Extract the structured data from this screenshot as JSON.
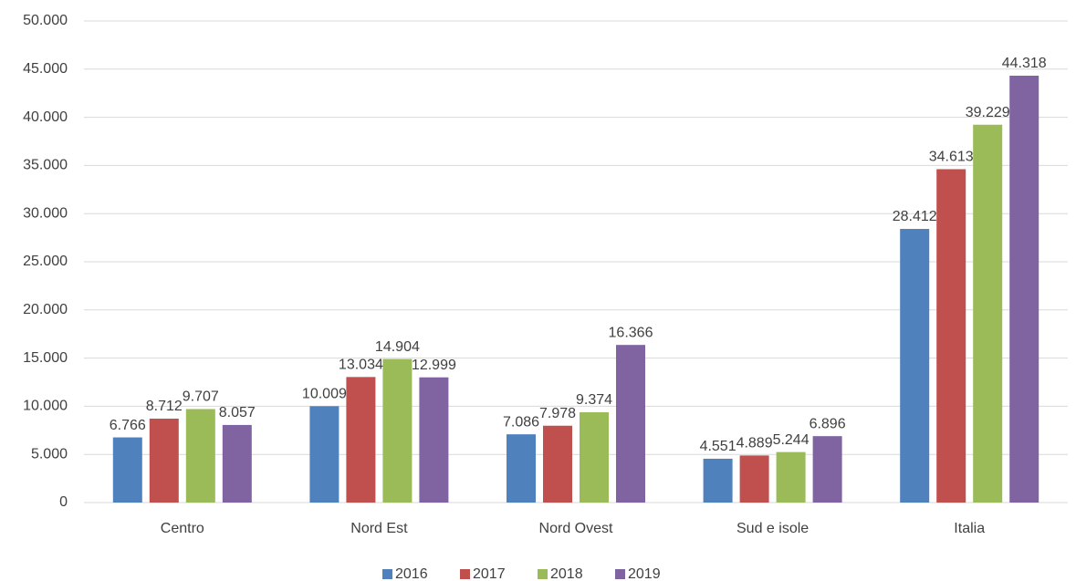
{
  "chart_data": {
    "type": "bar",
    "categories": [
      "Centro",
      "Nord Est",
      "Nord Ovest",
      "Sud e isole",
      "Italia"
    ],
    "series": [
      {
        "name": "2016",
        "color": "#4f81bd",
        "values": [
          6766,
          10009,
          7086,
          4551,
          28412
        ],
        "value_labels": [
          "6.766",
          "10.009",
          "7.086",
          "4.551",
          "28.412"
        ]
      },
      {
        "name": "2017",
        "color": "#c0504d",
        "values": [
          8712,
          13034,
          7978,
          4889,
          34613
        ],
        "value_labels": [
          "8.712",
          "13.034",
          "7.978",
          "4.889",
          "34.613"
        ]
      },
      {
        "name": "2018",
        "color": "#9bbb59",
        "values": [
          9707,
          14904,
          9374,
          5244,
          39229
        ],
        "value_labels": [
          "9.707",
          "14.904",
          "9.374",
          "5.244",
          "39.229"
        ]
      },
      {
        "name": "2019",
        "color": "#8064a2",
        "values": [
          8057,
          12999,
          16366,
          6896,
          44318
        ],
        "value_labels": [
          "8.057",
          "12.999",
          "16.366",
          "6.896",
          "44.318"
        ]
      }
    ],
    "ylim": [
      0,
      50000
    ],
    "yticks": [
      0,
      {
        "value": 5000,
        "label": "5.000"
      },
      {
        "value": 10000,
        "label": "10.000"
      },
      {
        "value": 15000,
        "label": "15.000"
      },
      {
        "value": 20000,
        "label": "20.000"
      },
      {
        "value": 25000,
        "label": "25.000"
      },
      {
        "value": 30000,
        "label": "30.000"
      },
      {
        "value": 35000,
        "label": "35.000"
      },
      {
        "value": 40000,
        "label": "40.000"
      },
      {
        "value": 45000,
        "label": "45.000"
      },
      {
        "value": 50000,
        "label": "50.000"
      }
    ],
    "grid": true,
    "legend": "bottom"
  }
}
